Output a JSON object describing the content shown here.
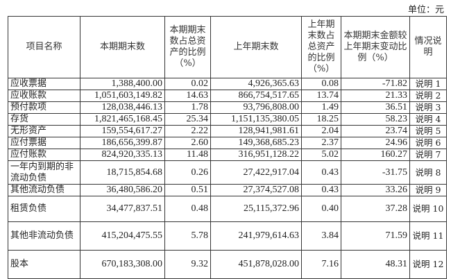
{
  "unit_label": "单位：元",
  "headers": [
    "项目名称",
    "本期期末数",
    "本期期末数占总资产的比例（%）",
    "上年期末数",
    "上年期末数占总资产的比例（%）",
    "本期期末金额较上年期末变动比例（%）",
    "情况说明"
  ],
  "rows": [
    [
      "应收票据",
      "1,388,400.00",
      "0.02",
      "4,926,365.63",
      "0.08",
      "-71.82",
      "说明 1"
    ],
    [
      "应收账款",
      "1,051,603,149.82",
      "14.63",
      "866,754,517.65",
      "13.74",
      "21.33",
      "说明 2"
    ],
    [
      "预付款项",
      "128,038,446.13",
      "1.78",
      "93,796,808.00",
      "1.49",
      "36.51",
      "说明 3"
    ],
    [
      "存货",
      "1,821,465,168.45",
      "25.34",
      "1,151,135,380.05",
      "18.25",
      "58.23",
      "说明 4"
    ],
    [
      "无形资产",
      "159,554,617.27",
      "2.22",
      "128,941,981.61",
      "2.04",
      "23.74",
      "说明 5"
    ],
    [
      "应付票据",
      "186,656,399.87",
      "2.60",
      "149,368,685.23",
      "2.37",
      "24.96",
      "说明 6"
    ],
    [
      "应付账款",
      "824,920,335.13",
      "11.48",
      "316,951,128.22",
      "5.02",
      "160.27",
      "说明 7"
    ],
    [
      "一年内到期的非流动负债",
      "18,715,854.68",
      "0.26",
      "27,422,917.04",
      "0.43",
      "-31.75",
      "说明 8"
    ],
    [
      "其他流动负债",
      "36,480,586.20",
      "0.51",
      "27,374,527.08",
      "0.43",
      "33.26",
      "说明 9"
    ],
    [
      "租赁负债",
      "34,477,837.51",
      "0.48",
      "25,115,372.96",
      "0.40",
      "37.28",
      "说明 10"
    ],
    [
      "其他非流动负债",
      "415,204,475.55",
      "5.78",
      "241,979,614.63",
      "3.84",
      "71.59",
      "说明 11"
    ],
    [
      "股本",
      "670,183,308.00",
      "9.32",
      "451,878,028.00",
      "7.16",
      "48.31",
      "说明 12"
    ]
  ]
}
